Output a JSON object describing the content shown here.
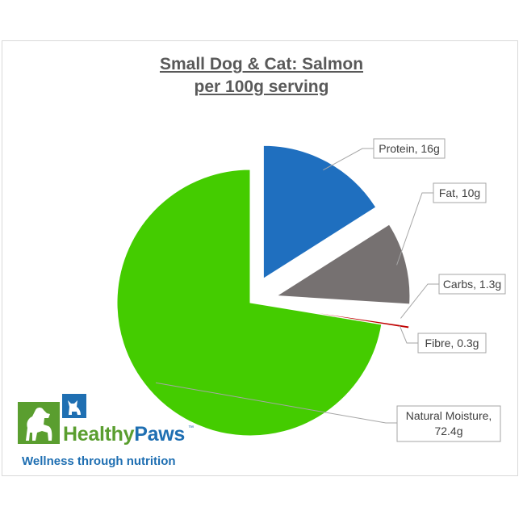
{
  "chart_data": {
    "type": "pie",
    "title": [
      "Small Dog & Cat: Salmon",
      "per 100g serving"
    ],
    "slices": [
      {
        "label": "Protein, 16g",
        "name": "Protein",
        "value": 16,
        "unit": "g",
        "color": "#1f6fbf",
        "exploded": true
      },
      {
        "label": "Fat, 10g",
        "name": "Fat",
        "value": 10,
        "unit": "g",
        "color": "#767171",
        "exploded": true
      },
      {
        "label": "Carbs, 1.3g",
        "name": "Carbs",
        "value": 1.3,
        "unit": "g",
        "color": "#ffffff",
        "exploded": true
      },
      {
        "label": "Fibre, 0.3g",
        "name": "Fibre",
        "value": 0.3,
        "unit": "g",
        "color": "#c00000",
        "exploded": true
      },
      {
        "label": [
          "Natural Moisture,",
          "72.4g"
        ],
        "name": "Natural Moisture",
        "value": 72.4,
        "unit": "g",
        "color": "#44cc00",
        "exploded": false
      }
    ],
    "legend": "none",
    "data_labels": "callout"
  },
  "brand": {
    "name_part1": "Healthy",
    "name_part2": "Paws",
    "trademark": "™",
    "tagline": "Wellness through nutrition",
    "colors": {
      "green": "#5a9e2f",
      "blue": "#1f6fb2"
    }
  }
}
